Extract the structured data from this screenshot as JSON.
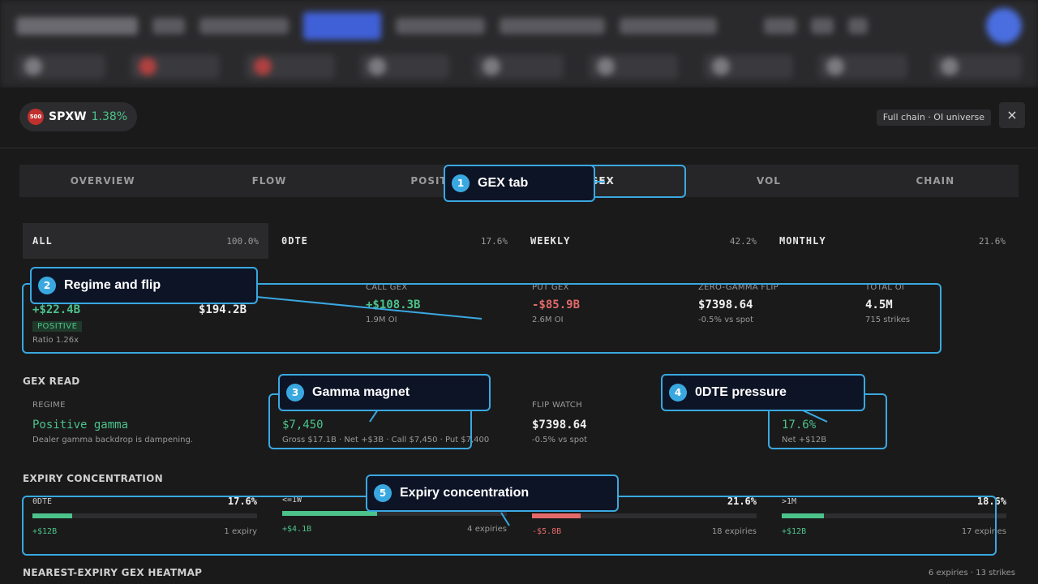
{
  "panel": {
    "symbol": "SPXW",
    "symbol_badge": "500",
    "change": "1.38%",
    "universe_label": "Full chain · OI universe",
    "close_icon": "×"
  },
  "tabs": [
    "OVERVIEW",
    "FLOW",
    "POSITIO",
    "GEX",
    "VOL",
    "CHAIN"
  ],
  "active_tab": "GEX",
  "expiry_tabs": [
    {
      "name": "ALL",
      "pct": "100.0%"
    },
    {
      "name": "0DTE",
      "pct": "17.6%"
    },
    {
      "name": "WEEKLY",
      "pct": "42.2%"
    },
    {
      "name": "MONTHLY",
      "pct": "21.6%"
    }
  ],
  "metrics": {
    "net_gex": {
      "value": "+$22.4B",
      "badge": "POSITIVE",
      "sub": "Ratio 1.26x"
    },
    "gross_gex": {
      "value": "$194.2B"
    },
    "call_gex": {
      "label": "CALL GEX",
      "value": "+$108.3B",
      "sub": "1.9M OI"
    },
    "put_gex": {
      "label": "PUT GEX",
      "value": "-$85.9B",
      "sub": "2.6M OI"
    },
    "flip": {
      "label": "ZERO-GAMMA FLIP",
      "value": "$7398.64",
      "sub": "-0.5% vs spot"
    },
    "total_oi": {
      "label": "TOTAL OI",
      "value": "4.5M",
      "sub": "715 strikes"
    }
  },
  "gex_read": {
    "title": "GEX READ",
    "regime": {
      "label": "REGIME",
      "value": "Positive gamma",
      "sub": "Dealer gamma backdrop is dampening."
    },
    "magnet": {
      "value": "$7,450",
      "sub": "Gross $17.1B · Net +$3B · Call $7,450 · Put $7,400"
    },
    "flip_watch": {
      "label": "FLIP WATCH",
      "value": "$7398.64",
      "sub": "-0.5% vs spot"
    },
    "pressure": {
      "value": "17.6%",
      "sub": "Net +$12B"
    }
  },
  "concentration": {
    "title": "EXPIRY CONCENTRATION",
    "items": [
      {
        "name": "0DTE",
        "pct": "17.6%",
        "fill": 0.176,
        "net": "+$12B",
        "count": "1 expiry",
        "color": "#4cc38a"
      },
      {
        "name": "<=1W",
        "pct": "",
        "fill": 0.422,
        "net": "+$4.1B",
        "count": "4 expiries",
        "color": "#4cc38a"
      },
      {
        "name": "",
        "pct": "21.6%",
        "fill": 0.216,
        "net": "-$5.8B",
        "count": "18 expiries",
        "color": "#e46a6a"
      },
      {
        "name": ">1M",
        "pct": "18.6%",
        "fill": 0.186,
        "net": "+$12B",
        "count": "17 expiries",
        "color": "#4cc38a"
      }
    ]
  },
  "heatmap": {
    "title": "NEAREST-EXPIRY GEX HEATMAP",
    "meta": "6 expiries · 13 strikes"
  },
  "callouts": [
    {
      "num": "1",
      "text": "GEX tab"
    },
    {
      "num": "2",
      "text": "Regime and flip"
    },
    {
      "num": "3",
      "text": "Gamma magnet"
    },
    {
      "num": "4",
      "text": "0DTE pressure"
    },
    {
      "num": "5",
      "text": "Expiry concentration"
    }
  ],
  "colors": {
    "accent": "#3aa8e0",
    "positive": "#4cc38a",
    "negative": "#e46a6a"
  }
}
